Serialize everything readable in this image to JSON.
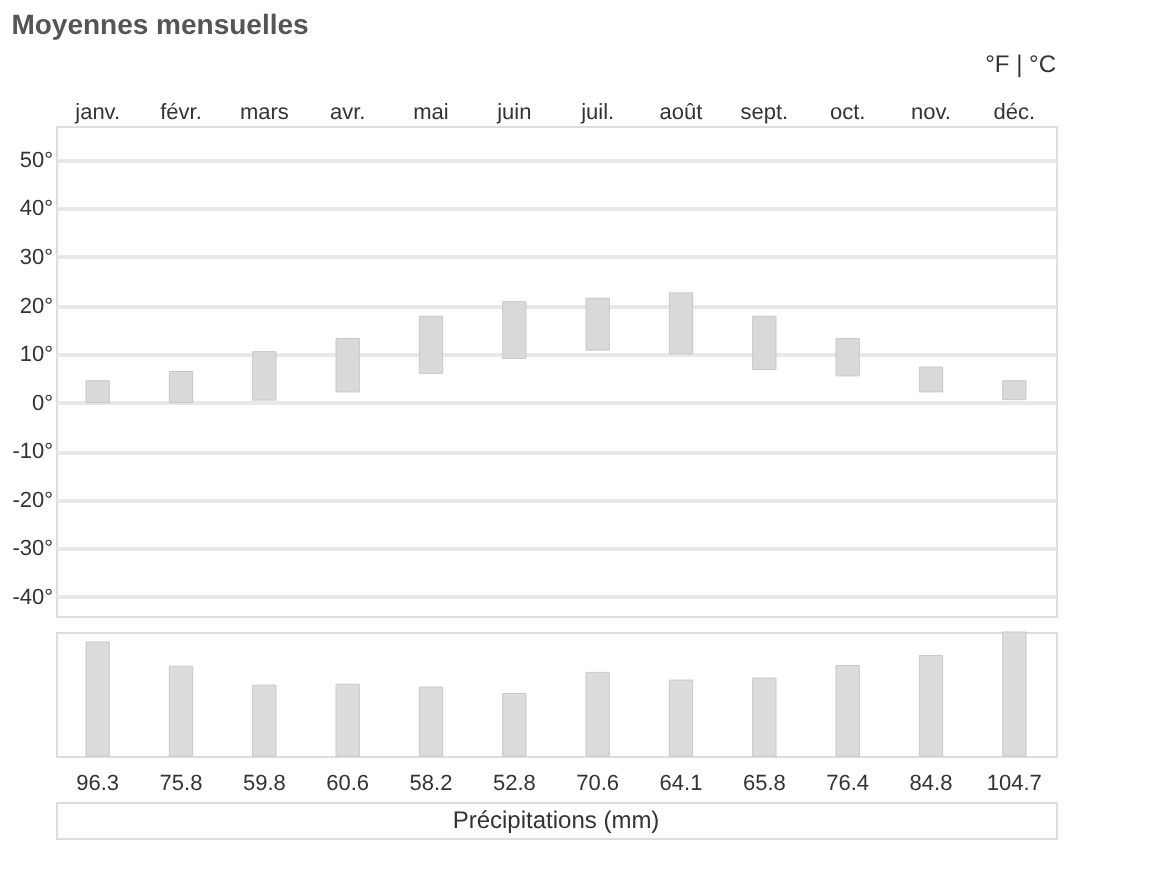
{
  "chart_data": [
    {
      "type": "bar",
      "title": "Moyennes mensuelles",
      "annotations": [
        "°F | °C"
      ],
      "categories": [
        "janv.",
        "févr.",
        "mars",
        "avr.",
        "mai",
        "juin",
        "juil.",
        "août",
        "sept.",
        "oct.",
        "nov.",
        "déc."
      ],
      "base": [
        0,
        0,
        0.5,
        2.2,
        6.0,
        9.1,
        10.8,
        10.0,
        6.8,
        5.5,
        2.2,
        0.6
      ],
      "values": [
        4.5,
        6.4,
        10.0,
        11.0,
        11.8,
        11.7,
        10.7,
        12.6,
        11.0,
        7.7,
        5.1,
        3.9
      ],
      "color": "#d9d9d9",
      "ylim": [
        -44,
        57
      ],
      "yticks": [
        {
          "value": -40,
          "label": "-40°"
        },
        {
          "value": -30,
          "label": "-30°"
        },
        {
          "value": -20,
          "label": "-20°"
        },
        {
          "value": -10,
          "label": "-10°"
        },
        {
          "value": 0,
          "label": "0°"
        },
        {
          "value": 10,
          "label": "10°"
        },
        {
          "value": 20,
          "label": "20°"
        },
        {
          "value": 30,
          "label": "30°"
        },
        {
          "value": 40,
          "label": "40°"
        },
        {
          "value": 50,
          "label": "50°"
        }
      ],
      "grid": "y"
    },
    {
      "type": "bar",
      "xlabel": "Précipitations (mm)",
      "categories": [
        null,
        null,
        null,
        null,
        null,
        null,
        null,
        null,
        null,
        null,
        null,
        null
      ],
      "values": [
        96.3,
        75.8,
        59.8,
        60.6,
        58.2,
        52.8,
        70.6,
        64.1,
        65.8,
        76.4,
        84.8,
        104.7
      ],
      "color": "#dcdcdc",
      "data_labels": true
    }
  ]
}
